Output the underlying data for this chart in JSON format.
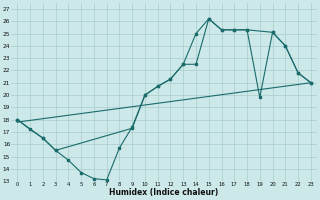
{
  "xlabel": "Humidex (Indice chaleur)",
  "xlim": [
    -0.5,
    23.5
  ],
  "ylim": [
    13,
    27.5
  ],
  "yticks": [
    13,
    14,
    15,
    16,
    17,
    18,
    19,
    20,
    21,
    22,
    23,
    24,
    25,
    26,
    27
  ],
  "xticks": [
    0,
    1,
    2,
    3,
    4,
    5,
    6,
    7,
    8,
    9,
    10,
    11,
    12,
    13,
    14,
    15,
    16,
    17,
    18,
    19,
    20,
    21,
    22,
    23
  ],
  "bg_color": "#cce8e8",
  "grid_color": "#aacccc",
  "line_color": "#1a6b6b",
  "curve1_x": [
    0,
    1,
    2,
    3,
    4,
    5,
    6,
    7,
    8,
    9,
    10,
    11,
    12,
    13,
    14,
    15,
    16,
    17,
    18,
    19,
    20,
    21,
    22,
    23
  ],
  "curve1_y": [
    18.0,
    17.2,
    16.5,
    15.5,
    14.7,
    13.7,
    13.2,
    13.1,
    15.7,
    17.4,
    20.0,
    20.7,
    21.3,
    22.5,
    22.5,
    26.2,
    25.3,
    25.3,
    25.3,
    19.8,
    25.1,
    24.0,
    21.8,
    21.0
  ],
  "curve2_x": [
    0,
    2,
    3,
    9,
    10,
    11,
    12,
    13,
    14,
    15,
    16,
    17,
    18,
    20,
    21,
    22,
    23
  ],
  "curve2_y": [
    18.0,
    16.5,
    15.5,
    17.3,
    20.0,
    20.7,
    21.3,
    22.5,
    25.0,
    26.2,
    25.3,
    25.3,
    25.3,
    25.1,
    24.0,
    21.8,
    21.0
  ],
  "curve3_x": [
    0,
    23
  ],
  "curve3_y": [
    17.8,
    21.0
  ]
}
